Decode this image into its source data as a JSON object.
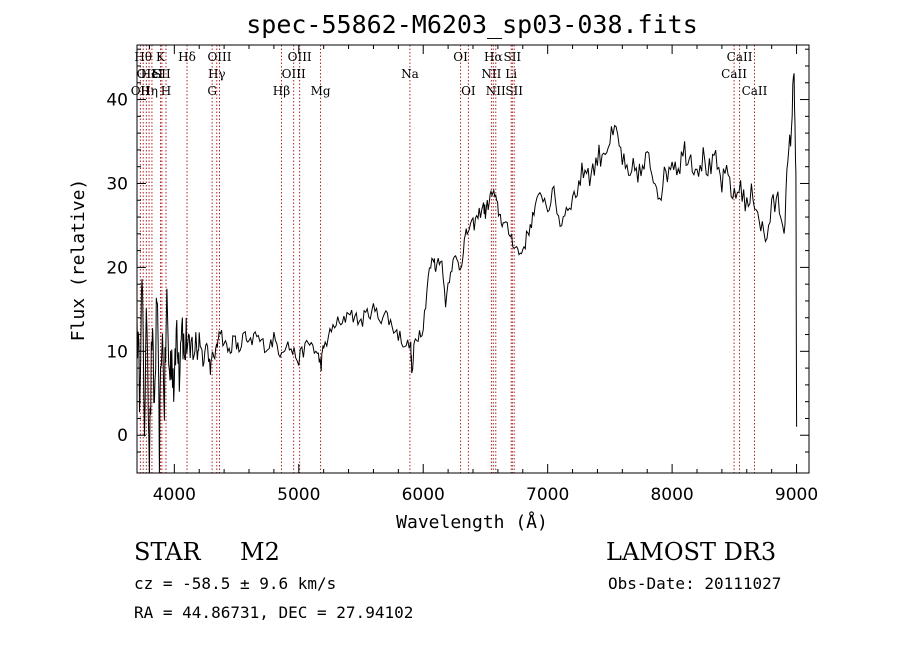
{
  "chart_data": {
    "type": "line",
    "title": "spec-55862-M6203_sp03-038.fits",
    "xlabel": "Wavelength (Å)",
    "ylabel": "Flux (relative)",
    "xlim": [
      3700,
      9100
    ],
    "ylim": [
      -4.5,
      46.5
    ],
    "x_ticks": [
      4000,
      5000,
      6000,
      7000,
      8000,
      9000
    ],
    "y_ticks": [
      0,
      10,
      20,
      30,
      40
    ],
    "series": [
      {
        "name": "spectrum",
        "color": "#000000",
        "points": [
          [
            3700,
            14
          ],
          [
            3720,
            6
          ],
          [
            3740,
            18
          ],
          [
            3760,
            2
          ],
          [
            3780,
            15
          ],
          [
            3800,
            -3
          ],
          [
            3820,
            12
          ],
          [
            3840,
            3
          ],
          [
            3860,
            17
          ],
          [
            3880,
            -2
          ],
          [
            3900,
            13
          ],
          [
            3920,
            4
          ],
          [
            3940,
            16
          ],
          [
            3960,
            7
          ],
          [
            3980,
            10
          ],
          [
            4000,
            5
          ],
          [
            4020,
            14
          ],
          [
            4040,
            8
          ],
          [
            4060,
            15
          ],
          [
            4080,
            9
          ],
          [
            4100,
            12
          ],
          [
            4120,
            8.5
          ],
          [
            4150,
            11
          ],
          [
            4180,
            10
          ],
          [
            4200,
            12
          ],
          [
            4230,
            9
          ],
          [
            4260,
            11
          ],
          [
            4290,
            8
          ],
          [
            4310,
            9.5
          ],
          [
            4340,
            10
          ],
          [
            4360,
            13
          ],
          [
            4400,
            11
          ],
          [
            4440,
            10
          ],
          [
            4480,
            11.5
          ],
          [
            4520,
            10
          ],
          [
            4560,
            12
          ],
          [
            4600,
            10.5
          ],
          [
            4650,
            12
          ],
          [
            4700,
            11
          ],
          [
            4750,
            10.5
          ],
          [
            4800,
            11.5
          ],
          [
            4850,
            10
          ],
          [
            4900,
            11
          ],
          [
            4950,
            10
          ],
          [
            5000,
            9
          ],
          [
            5050,
            10.5
          ],
          [
            5100,
            11
          ],
          [
            5150,
            9.5
          ],
          [
            5180,
            8.5
          ],
          [
            5200,
            10.5
          ],
          [
            5250,
            12
          ],
          [
            5300,
            13.5
          ],
          [
            5350,
            13
          ],
          [
            5400,
            15
          ],
          [
            5450,
            14
          ],
          [
            5500,
            13.5
          ],
          [
            5550,
            14.5
          ],
          [
            5600,
            15
          ],
          [
            5650,
            14
          ],
          [
            5700,
            14.5
          ],
          [
            5750,
            13
          ],
          [
            5800,
            12
          ],
          [
            5850,
            11
          ],
          [
            5900,
            10.5
          ],
          [
            5910,
            7
          ],
          [
            5930,
            11
          ],
          [
            5960,
            12
          ],
          [
            6000,
            13
          ],
          [
            6040,
            19
          ],
          [
            6080,
            21
          ],
          [
            6100,
            20
          ],
          [
            6140,
            21.5
          ],
          [
            6180,
            16
          ],
          [
            6220,
            20
          ],
          [
            6260,
            21
          ],
          [
            6300,
            20
          ],
          [
            6330,
            23
          ],
          [
            6360,
            24.5
          ],
          [
            6400,
            25
          ],
          [
            6440,
            26
          ],
          [
            6480,
            27.5
          ],
          [
            6500,
            26.5
          ],
          [
            6530,
            28
          ],
          [
            6560,
            29
          ],
          [
            6590,
            27.5
          ],
          [
            6620,
            26
          ],
          [
            6650,
            25
          ],
          [
            6700,
            24
          ],
          [
            6740,
            22.5
          ],
          [
            6780,
            21.5
          ],
          [
            6820,
            23
          ],
          [
            6860,
            25
          ],
          [
            6900,
            27
          ],
          [
            6950,
            29
          ],
          [
            7000,
            27
          ],
          [
            7050,
            29
          ],
          [
            7100,
            25
          ],
          [
            7150,
            27
          ],
          [
            7200,
            28
          ],
          [
            7250,
            30
          ],
          [
            7300,
            32
          ],
          [
            7350,
            31
          ],
          [
            7400,
            33
          ],
          [
            7450,
            34
          ],
          [
            7500,
            35
          ],
          [
            7550,
            36
          ],
          [
            7600,
            33
          ],
          [
            7650,
            30
          ],
          [
            7700,
            32
          ],
          [
            7750,
            31
          ],
          [
            7800,
            33
          ],
          [
            7850,
            31
          ],
          [
            7900,
            29
          ],
          [
            7950,
            31
          ],
          [
            8000,
            33
          ],
          [
            8050,
            32
          ],
          [
            8100,
            34
          ],
          [
            8150,
            33
          ],
          [
            8200,
            32
          ],
          [
            8250,
            33
          ],
          [
            8300,
            31.5
          ],
          [
            8350,
            32.5
          ],
          [
            8400,
            30
          ],
          [
            8450,
            31
          ],
          [
            8500,
            28
          ],
          [
            8550,
            30
          ],
          [
            8600,
            27
          ],
          [
            8650,
            29
          ],
          [
            8700,
            26
          ],
          [
            8750,
            23
          ],
          [
            8800,
            27
          ],
          [
            8850,
            28
          ],
          [
            8900,
            25
          ],
          [
            8930,
            32
          ],
          [
            8960,
            37
          ],
          [
            8980,
            44
          ],
          [
            8995,
            30
          ],
          [
            9000,
            1
          ]
        ]
      }
    ],
    "lines": [
      {
        "wl": 3727,
        "label": "OII",
        "row": 2
      },
      {
        "wl": 3750,
        "label": "Hθ",
        "row": 0
      },
      {
        "wl": 3775,
        "label": "OII",
        "row": 1
      },
      {
        "wl": 3797,
        "label": "Hη",
        "row": 2
      },
      {
        "wl": 3820,
        "label": "HeI",
        "row": 1
      },
      {
        "wl": 3889,
        "label": "K",
        "row": 0
      },
      {
        "wl": 3900,
        "label": "SII",
        "row": 1
      },
      {
        "wl": 3933,
        "label": "H",
        "row": 2
      },
      {
        "wl": 4102,
        "label": "Hδ",
        "row": 0
      },
      {
        "wl": 4304,
        "label": "G",
        "row": 2
      },
      {
        "wl": 4341,
        "label": "Hγ",
        "row": 1
      },
      {
        "wl": 4363,
        "label": "OIII",
        "row": 0
      },
      {
        "wl": 4861,
        "label": "Hβ",
        "row": 2
      },
      {
        "wl": 4959,
        "label": "OIII",
        "row": 1
      },
      {
        "wl": 5007,
        "label": "OIII",
        "row": 0
      },
      {
        "wl": 5175,
        "label": "Mg",
        "row": 2
      },
      {
        "wl": 5893,
        "label": "Na",
        "row": 1
      },
      {
        "wl": 6300,
        "label": "OI",
        "row": 0
      },
      {
        "wl": 6363,
        "label": "OI",
        "row": 2
      },
      {
        "wl": 6548,
        "label": "NII",
        "row": 1
      },
      {
        "wl": 6563,
        "label": "Hα",
        "row": 0
      },
      {
        "wl": 6583,
        "label": "NII",
        "row": 2
      },
      {
        "wl": 6707,
        "label": "Li",
        "row": 1
      },
      {
        "wl": 6716,
        "label": "SII",
        "row": 0
      },
      {
        "wl": 6731,
        "label": "SII",
        "row": 2
      },
      {
        "wl": 8498,
        "label": "CaII",
        "row": 1
      },
      {
        "wl": 8542,
        "label": "CaII",
        "row": 0
      },
      {
        "wl": 8662,
        "label": "CaII",
        "row": 2
      }
    ]
  },
  "info": {
    "object_class": "STAR",
    "subclass": "M2",
    "survey": "LAMOST DR3",
    "redshift": "cz = -58.5 ± 9.6 km/s",
    "obs_date": "Obs-Date: 20111027",
    "coords": "RA =  44.86731, DEC =  27.94102"
  },
  "colors": {
    "axis": "#000000",
    "spectrum": "#000000",
    "line_marker": "#b22222"
  }
}
